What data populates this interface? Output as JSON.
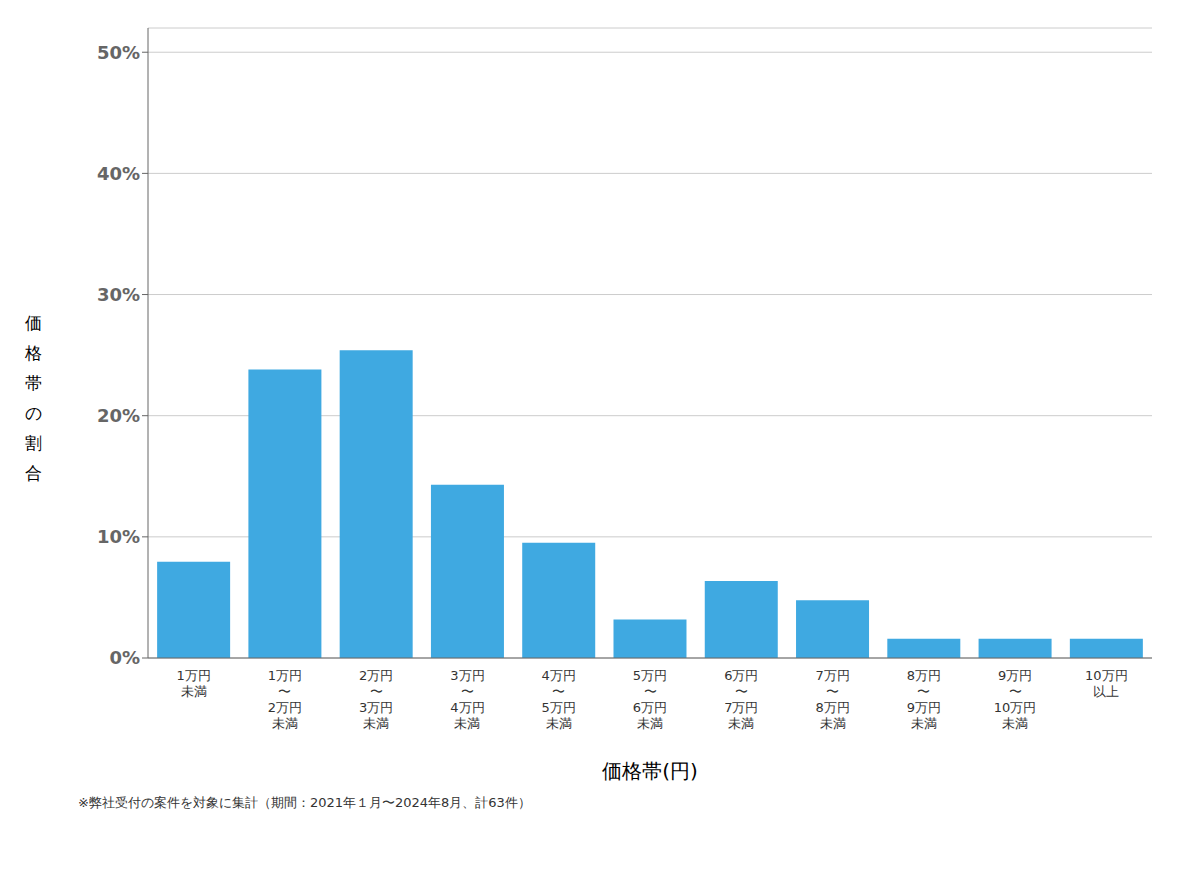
{
  "chart_data": {
    "type": "bar",
    "categories": [
      "1万円\n未満",
      "1万円\n〜\n2万円\n未満",
      "2万円\n〜\n3万円\n未満",
      "3万円\n〜\n4万円\n未満",
      "4万円\n〜\n5万円\n未満",
      "5万円\n〜\n6万円\n未満",
      "6万円\n〜\n7万円\n未満",
      "7万円\n〜\n8万円\n未満",
      "8万円\n〜\n9万円\n未満",
      "9万円\n〜\n10万円\n未満",
      "10万円\n以上"
    ],
    "values": [
      7.94,
      23.81,
      25.4,
      14.29,
      9.52,
      3.17,
      6.35,
      4.76,
      1.59,
      1.59,
      1.59
    ],
    "color": "#3FA9E1",
    "ylabel": "価格帯の割合",
    "xlabel": "価格帯(円)",
    "annotations": [
      "※弊社受付の案件を対象に集計（期間：2021年１月〜2024年8月、計63件）"
    ],
    "ylim": [
      0,
      52
    ],
    "yticks": [
      {
        "value": 0,
        "label": "0%"
      },
      {
        "value": 10,
        "label": "10%"
      },
      {
        "value": 20,
        "label": "20%"
      },
      {
        "value": 30,
        "label": "30%"
      },
      {
        "value": 40,
        "label": "40%"
      },
      {
        "value": 50,
        "label": "50%"
      }
    ],
    "grid": true
  }
}
